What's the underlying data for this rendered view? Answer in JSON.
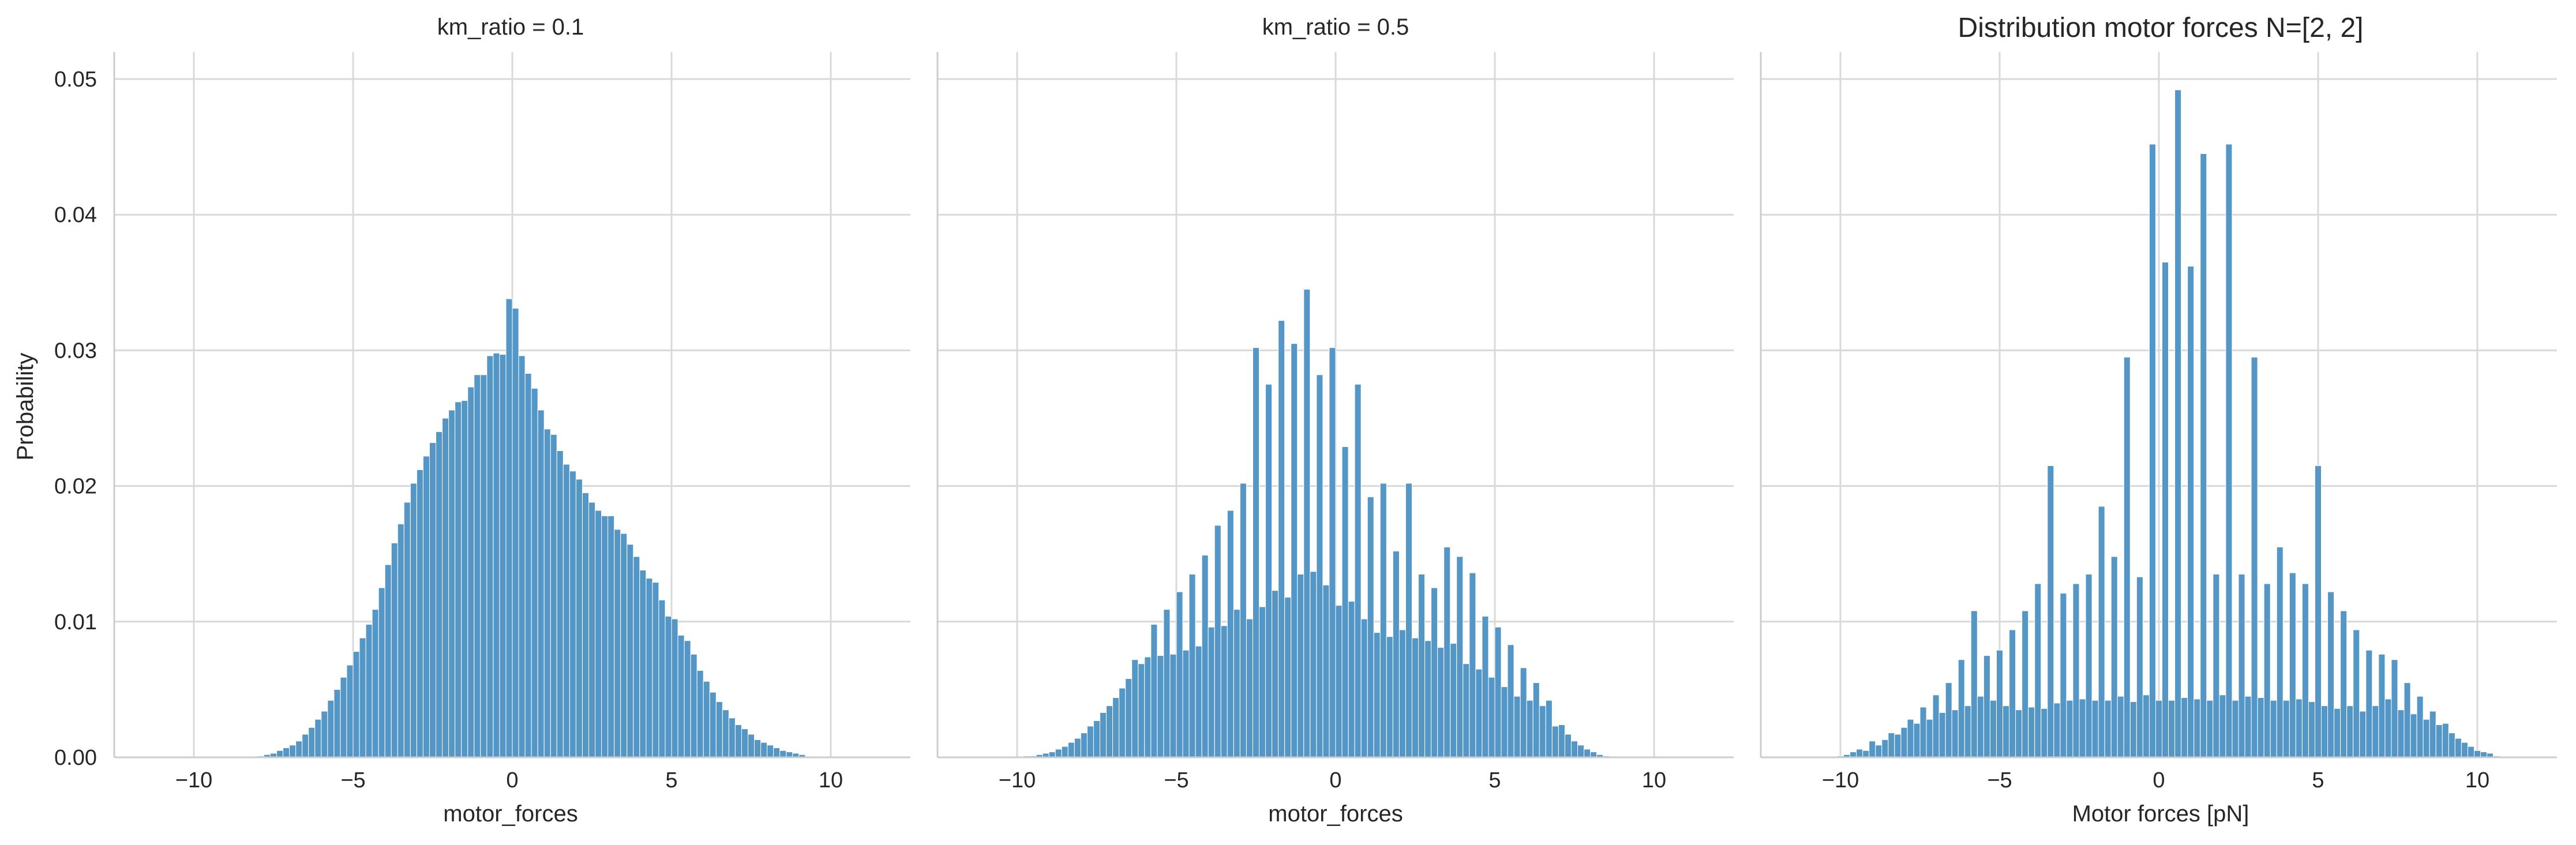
{
  "chart_data": [
    {
      "type": "bar",
      "title": "km_ratio = 0.1",
      "xlabel": "motor_forces",
      "ylabel": "Probability",
      "xlim": [
        -12.5,
        12.5
      ],
      "ylim": [
        0,
        0.052
      ],
      "xticks": [
        "−10",
        "−5",
        "0",
        "5",
        "10"
      ],
      "yticks": [
        "0.00",
        "0.01",
        "0.02",
        "0.03",
        "0.04",
        "0.05"
      ],
      "grid": true,
      "bin_start": -8.0,
      "bin_width": 0.2,
      "values": [
        0.0001,
        0.0002,
        0.0003,
        0.0005,
        0.0007,
        0.0009,
        0.0012,
        0.0017,
        0.0022,
        0.0028,
        0.0034,
        0.0042,
        0.005,
        0.0059,
        0.0068,
        0.0078,
        0.0088,
        0.0098,
        0.0109,
        0.0125,
        0.0142,
        0.0158,
        0.0172,
        0.0188,
        0.0202,
        0.0212,
        0.0222,
        0.0232,
        0.024,
        0.025,
        0.0256,
        0.0262,
        0.0263,
        0.0273,
        0.0282,
        0.0282,
        0.0296,
        0.0298,
        0.0297,
        0.0338,
        0.0331,
        0.0296,
        0.0283,
        0.0272,
        0.0256,
        0.0242,
        0.0238,
        0.0226,
        0.0216,
        0.0211,
        0.0205,
        0.0195,
        0.0188,
        0.0182,
        0.0178,
        0.0178,
        0.0168,
        0.0165,
        0.0157,
        0.0148,
        0.0138,
        0.0132,
        0.0129,
        0.0116,
        0.0104,
        0.0102,
        0.009,
        0.0086,
        0.0076,
        0.0064,
        0.0056,
        0.0048,
        0.0041,
        0.0035,
        0.0029,
        0.0024,
        0.0021,
        0.0017,
        0.0013,
        0.0011,
        0.0009,
        0.0007,
        0.0005,
        0.0004,
        0.0003,
        0.0002
      ]
    },
    {
      "type": "bar",
      "title": "km_ratio = 0.5",
      "xlabel": "motor_forces",
      "ylabel": "",
      "xlim": [
        -12.5,
        12.5
      ],
      "ylim": [
        0,
        0.052
      ],
      "xticks": [
        "−10",
        "−5",
        "0",
        "5",
        "10"
      ],
      "yticks": [],
      "grid": true,
      "bin_start": -9.8,
      "bin_width": 0.2,
      "values": [
        0.0001,
        0.0001,
        0.0002,
        0.0003,
        0.0004,
        0.0006,
        0.0008,
        0.0011,
        0.0014,
        0.0018,
        0.0023,
        0.0027,
        0.0033,
        0.0038,
        0.0044,
        0.0051,
        0.0058,
        0.0072,
        0.0069,
        0.0074,
        0.0098,
        0.0075,
        0.0109,
        0.0076,
        0.0122,
        0.0079,
        0.0135,
        0.0082,
        0.0149,
        0.0096,
        0.0171,
        0.0097,
        0.0182,
        0.0109,
        0.0202,
        0.0102,
        0.0302,
        0.0111,
        0.0275,
        0.0123,
        0.0322,
        0.0118,
        0.0305,
        0.0135,
        0.0345,
        0.0137,
        0.0282,
        0.0127,
        0.0302,
        0.0112,
        0.0229,
        0.0115,
        0.0275,
        0.0102,
        0.0192,
        0.0092,
        0.0202,
        0.0089,
        0.0152,
        0.0094,
        0.0202,
        0.0088,
        0.0135,
        0.0086,
        0.0125,
        0.0081,
        0.0155,
        0.0084,
        0.0148,
        0.0069,
        0.0136,
        0.0065,
        0.0104,
        0.0059,
        0.0096,
        0.0052,
        0.0083,
        0.0045,
        0.0066,
        0.0042,
        0.0055,
        0.0038,
        0.0042,
        0.0023,
        0.0024,
        0.0017,
        0.0012,
        0.0009,
        0.0006,
        0.0004,
        0.0002,
        0.0001
      ]
    },
    {
      "type": "bar",
      "title": "Distribution motor forces N=[2, 2]",
      "xlabel": "Motor forces [pN]",
      "ylabel": "",
      "xlim": [
        -12.5,
        12.5
      ],
      "ylim": [
        0,
        0.052
      ],
      "xticks": [
        "−10",
        "−5",
        "0",
        "5",
        "10"
      ],
      "yticks": [],
      "grid": true,
      "bin_start": -10.1,
      "bin_width": 0.2,
      "values": [
        0.0001,
        0.0002,
        0.0004,
        0.0006,
        0.0005,
        0.0012,
        0.0009,
        0.0013,
        0.0018,
        0.0017,
        0.0022,
        0.0028,
        0.0025,
        0.0037,
        0.0028,
        0.0046,
        0.0033,
        0.0055,
        0.0035,
        0.0072,
        0.0038,
        0.0108,
        0.0045,
        0.0075,
        0.0042,
        0.0079,
        0.0038,
        0.0094,
        0.0035,
        0.0108,
        0.0037,
        0.0128,
        0.0036,
        0.0215,
        0.004,
        0.0121,
        0.0042,
        0.0128,
        0.0043,
        0.0135,
        0.0042,
        0.0185,
        0.0042,
        0.0148,
        0.0045,
        0.0295,
        0.0041,
        0.0133,
        0.0046,
        0.0452,
        0.0042,
        0.0365,
        0.0042,
        0.0492,
        0.0044,
        0.0362,
        0.0043,
        0.0445,
        0.0042,
        0.0135,
        0.0046,
        0.0452,
        0.0042,
        0.0135,
        0.0045,
        0.0295,
        0.0044,
        0.0128,
        0.0042,
        0.0155,
        0.0042,
        0.0136,
        0.0043,
        0.0128,
        0.0041,
        0.0215,
        0.0038,
        0.0122,
        0.0036,
        0.0108,
        0.0038,
        0.0094,
        0.0034,
        0.0079,
        0.0038,
        0.0076,
        0.0043,
        0.0072,
        0.0035,
        0.0055,
        0.0032,
        0.0045,
        0.0028,
        0.0034,
        0.0024,
        0.0025,
        0.0018,
        0.0014,
        0.0011,
        0.0008,
        0.0005,
        0.0004,
        0.0003,
        0.0001
      ]
    }
  ]
}
